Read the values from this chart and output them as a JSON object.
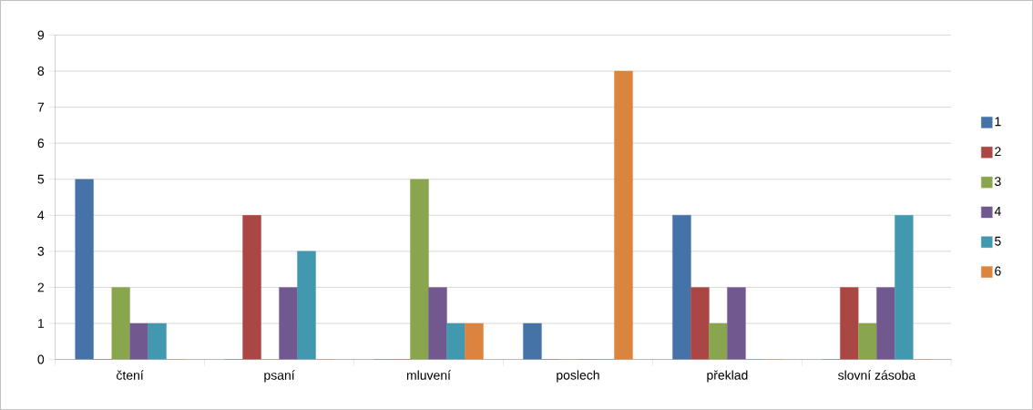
{
  "chart_data": {
    "type": "bar",
    "categories": [
      "čtení",
      "psaní",
      "mluvení",
      "poslech",
      "překlad",
      "slovní zásoba"
    ],
    "series": [
      {
        "name": "1",
        "color": "#4572a7",
        "values": [
          5,
          0,
          0,
          1,
          4,
          0
        ]
      },
      {
        "name": "2",
        "color": "#aa4643",
        "values": [
          0,
          4,
          0,
          0,
          2,
          2
        ]
      },
      {
        "name": "3",
        "color": "#89a54e",
        "values": [
          2,
          0,
          5,
          0,
          1,
          1
        ]
      },
      {
        "name": "4",
        "color": "#71588f",
        "values": [
          1,
          2,
          2,
          0,
          2,
          2
        ]
      },
      {
        "name": "5",
        "color": "#4198af",
        "values": [
          1,
          3,
          1,
          0,
          0,
          4
        ]
      },
      {
        "name": "6",
        "color": "#db843d",
        "values": [
          0,
          0,
          1,
          8,
          0,
          0
        ]
      }
    ],
    "ylim": [
      0,
      9
    ],
    "yticks": [
      0,
      1,
      2,
      3,
      4,
      5,
      6,
      7,
      8,
      9
    ],
    "grid": "y",
    "legend": "right"
  }
}
